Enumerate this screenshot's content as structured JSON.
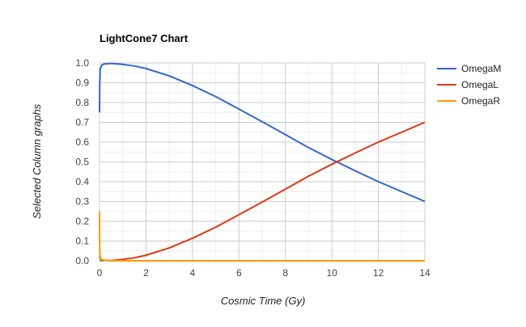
{
  "chart_data": {
    "type": "line",
    "title": "LightCone7 Chart",
    "xlabel": "Cosmic Time (Gy)",
    "ylabel": "Selected Column graphs",
    "xlim": [
      0,
      14
    ],
    "ylim": [
      0,
      1.0
    ],
    "x_ticks": [
      "0",
      "2",
      "4",
      "6",
      "8",
      "10",
      "12",
      "14"
    ],
    "y_ticks": [
      "0.0",
      "0.1",
      "0.2",
      "0.3",
      "0.4",
      "0.5",
      "0.6",
      "0.7",
      "0.8",
      "0.9",
      "1.0"
    ],
    "grid": true,
    "minor_grid": true,
    "legend_position": "right",
    "series": [
      {
        "name": "OmegaM",
        "color": "#3366cc",
        "points": [
          [
            0,
            0.75
          ],
          [
            0.01,
            0.9
          ],
          [
            0.03,
            0.97
          ],
          [
            0.1,
            0.99
          ],
          [
            0.2,
            0.995
          ],
          [
            0.5,
            0.998
          ],
          [
            1,
            0.993
          ],
          [
            1.5,
            0.985
          ],
          [
            2,
            0.972
          ],
          [
            3,
            0.935
          ],
          [
            4,
            0.886
          ],
          [
            5,
            0.83
          ],
          [
            6,
            0.767
          ],
          [
            7,
            0.703
          ],
          [
            8,
            0.638
          ],
          [
            9,
            0.572
          ],
          [
            10,
            0.512
          ],
          [
            11,
            0.455
          ],
          [
            12,
            0.4
          ],
          [
            13,
            0.35
          ],
          [
            14,
            0.3
          ]
        ]
      },
      {
        "name": "OmegaL",
        "color": "#dc3912",
        "points": [
          [
            0,
            0.02
          ],
          [
            0.05,
            0.008
          ],
          [
            0.2,
            0.003
          ],
          [
            0.5,
            0.001
          ],
          [
            1,
            0.007
          ],
          [
            1.5,
            0.015
          ],
          [
            2,
            0.028
          ],
          [
            3,
            0.065
          ],
          [
            4,
            0.114
          ],
          [
            5,
            0.17
          ],
          [
            6,
            0.233
          ],
          [
            7,
            0.297
          ],
          [
            8,
            0.362
          ],
          [
            9,
            0.428
          ],
          [
            10,
            0.488
          ],
          [
            11,
            0.545
          ],
          [
            12,
            0.6
          ],
          [
            13,
            0.65
          ],
          [
            14,
            0.7
          ]
        ]
      },
      {
        "name": "OmegaR",
        "color": "#ff9900",
        "points": [
          [
            0,
            0.25
          ],
          [
            0.005,
            0.1
          ],
          [
            0.01,
            0.04
          ],
          [
            0.05,
            0.01
          ],
          [
            0.2,
            0.002
          ],
          [
            0.5,
            0.0005
          ],
          [
            1,
            0.0
          ],
          [
            14,
            0.0
          ]
        ]
      }
    ]
  }
}
